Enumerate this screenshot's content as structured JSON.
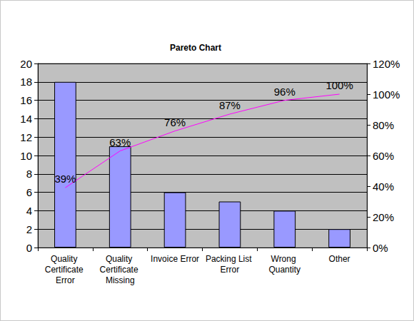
{
  "chart_data": {
    "type": "bar",
    "title": "Pareto Chart",
    "categories": [
      "Quality Certificate Error",
      "Quality Certificate Missing",
      "Invoice Error",
      "Packing List Error",
      "Wrong Quantity",
      "Other"
    ],
    "series": [
      {
        "type": "bar",
        "color": "#9999ff",
        "values": [
          18,
          11,
          6,
          5,
          4,
          2
        ]
      },
      {
        "type": "line",
        "axis": "y2",
        "color": "#ff00ff",
        "marker": "none",
        "line_style": "solid",
        "data_labels": true,
        "values": [
          39,
          63,
          76,
          87,
          96,
          100
        ],
        "value_labels": [
          "39%",
          "63%",
          "76%",
          "87%",
          "96%",
          "100%"
        ]
      }
    ],
    "ylim": [
      0,
      20
    ],
    "yticks": [
      0,
      2,
      4,
      6,
      8,
      10,
      12,
      14,
      16,
      18,
      20
    ],
    "y2lim": [
      0,
      120
    ],
    "y2ticks": [
      {
        "value": 0,
        "label": "0%"
      },
      {
        "value": 20,
        "label": "20%"
      },
      {
        "value": 40,
        "label": "40%"
      },
      {
        "value": 60,
        "label": "60%"
      },
      {
        "value": 80,
        "label": "80%"
      },
      {
        "value": 100,
        "label": "100%"
      },
      {
        "value": 120,
        "label": "120%"
      }
    ],
    "grid": true
  }
}
